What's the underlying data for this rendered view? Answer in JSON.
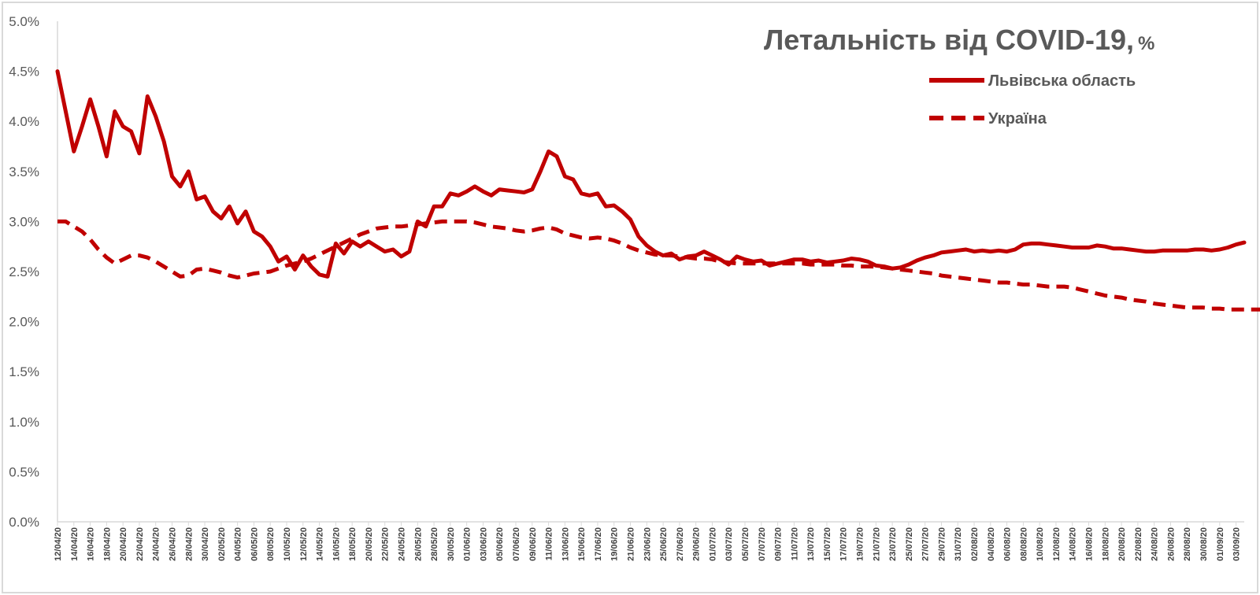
{
  "chart_data": {
    "type": "line",
    "title": "Летальність від COVID-19,",
    "title_unit": "%",
    "xlabel": "",
    "ylabel": "",
    "ylim": [
      0,
      5
    ],
    "y_ticks": [
      "0.0%",
      "0.5%",
      "1.0%",
      "1.5%",
      "2.0%",
      "2.5%",
      "3.0%",
      "3.5%",
      "4.0%",
      "4.5%",
      "5.0%"
    ],
    "grid": false,
    "legend_position": "top-right",
    "x_start_label": "12/04/20",
    "x_tick_labels": [
      "12/04/20",
      "14/04/20",
      "16/04/20",
      "18/04/20",
      "20/04/20",
      "22/04/20",
      "24/04/20",
      "26/04/20",
      "28/04/20",
      "30/04/20",
      "02/05/20",
      "04/05/20",
      "06/05/20",
      "08/05/20",
      "10/05/20",
      "12/05/20",
      "14/05/20",
      "16/05/20",
      "18/05/20",
      "20/05/20",
      "22/05/20",
      "24/05/20",
      "26/05/20",
      "28/05/20",
      "30/05/20",
      "01/06/20",
      "03/06/20",
      "05/06/20",
      "07/06/20",
      "09/06/20",
      "11/06/20",
      "13/06/20",
      "15/06/20",
      "17/06/20",
      "19/06/20",
      "21/06/20",
      "23/06/20",
      "25/06/20",
      "27/06/20",
      "29/06/20",
      "01/07/20",
      "03/07/20",
      "05/07/20",
      "07/07/20",
      "09/07/20",
      "11/07/20",
      "13/07/20",
      "15/07/20",
      "17/07/20",
      "19/07/20",
      "21/07/20",
      "23/07/20",
      "25/07/20",
      "27/07/20",
      "29/07/20",
      "31/07/20",
      "02/08/20",
      "04/08/20",
      "06/08/20",
      "08/08/20",
      "10/08/20",
      "12/08/20",
      "14/08/20",
      "16/08/20",
      "18/08/20",
      "20/08/20",
      "22/08/20",
      "24/08/20",
      "26/08/20",
      "28/08/20",
      "30/08/20",
      "01/09/20",
      "03/09/20"
    ],
    "series": [
      {
        "name": "Львівська область",
        "style": "solid",
        "color": "#c00000",
        "values": [
          4.5,
          4.1,
          3.7,
          3.95,
          4.22,
          3.95,
          3.65,
          4.1,
          3.95,
          3.9,
          3.68,
          4.25,
          4.05,
          3.8,
          3.45,
          3.35,
          3.5,
          3.22,
          3.25,
          3.1,
          3.03,
          3.15,
          2.98,
          3.1,
          2.9,
          2.85,
          2.75,
          2.6,
          2.65,
          2.52,
          2.66,
          2.55,
          2.47,
          2.45,
          2.78,
          2.68,
          2.8,
          2.75,
          2.8,
          2.75,
          2.7,
          2.72,
          2.65,
          2.7,
          3.0,
          2.95,
          3.15,
          3.15,
          3.28,
          3.26,
          3.3,
          3.35,
          3.3,
          3.26,
          3.32,
          3.31,
          3.3,
          3.29,
          3.32,
          3.5,
          3.7,
          3.65,
          3.45,
          3.42,
          3.28,
          3.26,
          3.28,
          3.15,
          3.16,
          3.1,
          3.02,
          2.85,
          2.76,
          2.7,
          2.66,
          2.68,
          2.62,
          2.65,
          2.66,
          2.7,
          2.66,
          2.62,
          2.57,
          2.65,
          2.62,
          2.6,
          2.61,
          2.56,
          2.58,
          2.6,
          2.62,
          2.62,
          2.6,
          2.61,
          2.59,
          2.6,
          2.61,
          2.63,
          2.62,
          2.6,
          2.56,
          2.55,
          2.53,
          2.54,
          2.57,
          2.61,
          2.64,
          2.66,
          2.69,
          2.7,
          2.71,
          2.72,
          2.7,
          2.71,
          2.7,
          2.71,
          2.7,
          2.72,
          2.77,
          2.78,
          2.78,
          2.77,
          2.76,
          2.75,
          2.74,
          2.74,
          2.74,
          2.76,
          2.75,
          2.73,
          2.73,
          2.72,
          2.71,
          2.7,
          2.7,
          2.71,
          2.71,
          2.71,
          2.71,
          2.72,
          2.72,
          2.71,
          2.72,
          2.74,
          2.77,
          2.79
        ]
      },
      {
        "name": "Україна",
        "style": "dashed",
        "color": "#c00000",
        "values": [
          3.0,
          3.0,
          2.95,
          2.9,
          2.82,
          2.72,
          2.64,
          2.58,
          2.62,
          2.66,
          2.66,
          2.64,
          2.6,
          2.55,
          2.5,
          2.45,
          2.46,
          2.52,
          2.53,
          2.51,
          2.49,
          2.46,
          2.44,
          2.46,
          2.48,
          2.49,
          2.5,
          2.53,
          2.56,
          2.58,
          2.6,
          2.63,
          2.67,
          2.71,
          2.75,
          2.79,
          2.83,
          2.87,
          2.9,
          2.93,
          2.94,
          2.95,
          2.95,
          2.96,
          2.97,
          2.98,
          2.99,
          3.0,
          3.0,
          3.0,
          3.0,
          2.99,
          2.97,
          2.95,
          2.94,
          2.93,
          2.91,
          2.9,
          2.91,
          2.93,
          2.94,
          2.92,
          2.88,
          2.86,
          2.84,
          2.83,
          2.84,
          2.83,
          2.81,
          2.78,
          2.74,
          2.71,
          2.69,
          2.67,
          2.66,
          2.66,
          2.65,
          2.64,
          2.63,
          2.63,
          2.62,
          2.6,
          2.59,
          2.58,
          2.58,
          2.58,
          2.58,
          2.58,
          2.58,
          2.58,
          2.58,
          2.58,
          2.57,
          2.57,
          2.57,
          2.57,
          2.56,
          2.56,
          2.55,
          2.55,
          2.55,
          2.54,
          2.53,
          2.52,
          2.51,
          2.5,
          2.49,
          2.48,
          2.46,
          2.45,
          2.44,
          2.43,
          2.42,
          2.41,
          2.4,
          2.39,
          2.39,
          2.38,
          2.37,
          2.37,
          2.36,
          2.35,
          2.35,
          2.35,
          2.34,
          2.32,
          2.3,
          2.28,
          2.26,
          2.25,
          2.24,
          2.22,
          2.21,
          2.2,
          2.18,
          2.17,
          2.16,
          2.15,
          2.14,
          2.14,
          2.14,
          2.13,
          2.13,
          2.12,
          2.12,
          2.12,
          2.12,
          2.12
        ]
      }
    ]
  }
}
